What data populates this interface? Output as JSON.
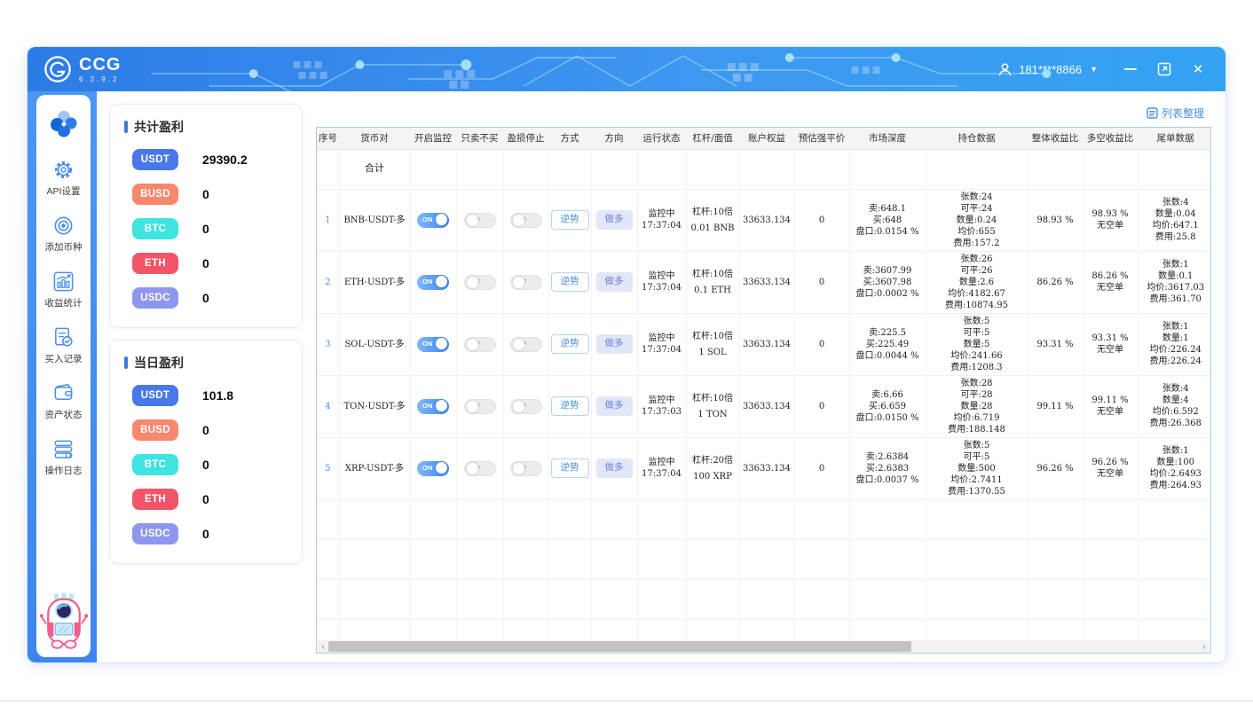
{
  "header": {
    "brand": "CCG",
    "version": "6.2.9.2",
    "user_phone": "181****8866"
  },
  "window_controls": {
    "minimize": "minimize",
    "maximize": "maximize",
    "close": "✕"
  },
  "sidebar": {
    "items": [
      {
        "icon": "gear-icon",
        "label": "API设置"
      },
      {
        "icon": "target-icon",
        "label": "添加币种"
      },
      {
        "icon": "chart-icon",
        "label": "收益统计"
      },
      {
        "icon": "receipt-icon",
        "label": "买入记录"
      },
      {
        "icon": "wallet-icon",
        "label": "资产状态"
      },
      {
        "icon": "logs-icon",
        "label": "操作日志"
      }
    ]
  },
  "coin_colors": {
    "USDT": "#4878ea",
    "BUSD": "#f8876e",
    "BTC": "#3fe3e0",
    "ETH": "#f25468",
    "USDC": "#8e97ee"
  },
  "accent_colors": {
    "title_bar": "#3a7bd5",
    "link": "#4a90e0"
  },
  "profit_cards": [
    {
      "title": "共计盈利",
      "items": [
        {
          "coin": "USDT",
          "value": "29390.2"
        },
        {
          "coin": "BUSD",
          "value": "0"
        },
        {
          "coin": "BTC",
          "value": "0"
        },
        {
          "coin": "ETH",
          "value": "0"
        },
        {
          "coin": "USDC",
          "value": "0"
        }
      ]
    },
    {
      "title": "当日盈利",
      "items": [
        {
          "coin": "USDT",
          "value": "101.8"
        },
        {
          "coin": "BUSD",
          "value": "0"
        },
        {
          "coin": "BTC",
          "value": "0"
        },
        {
          "coin": "ETH",
          "value": "0"
        },
        {
          "coin": "USDC",
          "value": "0"
        }
      ]
    }
  ],
  "table": {
    "organize_label": "列表整理",
    "toggle_on_label": "ON",
    "toggle_off_label": "OFF",
    "headers": [
      "序号",
      "货币对",
      "开启监控",
      "只卖不买",
      "盈损停止",
      "方式",
      "方向",
      "运行状态",
      "杠杆/面值",
      "账户权益",
      "预估强平价",
      "市场深度",
      "持仓数据",
      "整体收益比",
      "多空收益比",
      "尾单数据"
    ],
    "total_row_label": "合计",
    "rows": [
      {
        "index": "1",
        "pair": "BNB-USDT-多",
        "monitor_on": true,
        "sell_only_on": false,
        "stop_on": false,
        "mode": "逆势",
        "direction": "做多",
        "status": [
          "监控中",
          "17:37:04"
        ],
        "leverage": [
          "杠杆:10倍",
          "0.01 BNB"
        ],
        "equity": "33633.134",
        "liq_price": "0",
        "depth": [
          "卖:648.1",
          "买:648",
          "盘口:0.0154 %"
        ],
        "position": [
          "张数:24",
          "可平:24",
          "数量:0.24",
          "均价:655",
          "费用:157.2"
        ],
        "overall_ratio": "98.93 %",
        "ls_ratio": [
          "98.93 %",
          "无空单"
        ],
        "tail": [
          "张数:4",
          "数量:0.04",
          "均价:647.1",
          "费用:25.8"
        ]
      },
      {
        "index": "2",
        "pair": "ETH-USDT-多",
        "monitor_on": true,
        "sell_only_on": false,
        "stop_on": false,
        "mode": "逆势",
        "direction": "做多",
        "status": [
          "监控中",
          "17:37:04"
        ],
        "leverage": [
          "杠杆:10倍",
          "0.1 ETH"
        ],
        "equity": "33633.134",
        "liq_price": "0",
        "depth": [
          "卖:3607.99",
          "买:3607.98",
          "盘口:0.0002 %"
        ],
        "position": [
          "张数:26",
          "可平:26",
          "数量:2.6",
          "均价:4182.67",
          "费用:10874.95"
        ],
        "overall_ratio": "86.26 %",
        "ls_ratio": [
          "86.26 %",
          "无空单"
        ],
        "tail": [
          "张数:1",
          "数量:0.1",
          "均价:3617.03",
          "费用:361.70"
        ]
      },
      {
        "index": "3",
        "pair": "SOL-USDT-多",
        "monitor_on": true,
        "sell_only_on": false,
        "stop_on": false,
        "mode": "逆势",
        "direction": "做多",
        "status": [
          "监控中",
          "17:37:04"
        ],
        "leverage": [
          "杠杆:10倍",
          "1 SOL"
        ],
        "equity": "33633.134",
        "liq_price": "0",
        "depth": [
          "卖:225.5",
          "买:225.49",
          "盘口:0.0044 %"
        ],
        "position": [
          "张数:5",
          "可平:5",
          "数量:5",
          "均价:241.66",
          "费用:1208.3"
        ],
        "overall_ratio": "93.31 %",
        "ls_ratio": [
          "93.31 %",
          "无空单"
        ],
        "tail": [
          "张数:1",
          "数量:1",
          "均价:226.24",
          "费用:226.24"
        ]
      },
      {
        "index": "4",
        "pair": "TON-USDT-多",
        "monitor_on": true,
        "sell_only_on": false,
        "stop_on": false,
        "mode": "逆势",
        "direction": "做多",
        "status": [
          "监控中",
          "17:37:03"
        ],
        "leverage": [
          "杠杆:10倍",
          "1 TON"
        ],
        "equity": "33633.134",
        "liq_price": "0",
        "depth": [
          "卖:6.66",
          "买:6.659",
          "盘口:0.0150 %"
        ],
        "position": [
          "张数:28",
          "可平:28",
          "数量:28",
          "均价:6.719",
          "费用:188.148"
        ],
        "overall_ratio": "99.11 %",
        "ls_ratio": [
          "99.11 %",
          "无空单"
        ],
        "tail": [
          "张数:4",
          "数量:4",
          "均价:6.592",
          "费用:26.368"
        ]
      },
      {
        "index": "5",
        "pair": "XRP-USDT-多",
        "monitor_on": true,
        "sell_only_on": false,
        "stop_on": false,
        "mode": "逆势",
        "direction": "做多",
        "status": [
          "监控中",
          "17:37:04"
        ],
        "leverage": [
          "杠杆:20倍",
          "100 XRP"
        ],
        "equity": "33633.134",
        "liq_price": "0",
        "depth": [
          "卖:2.6384",
          "买:2.6383",
          "盘口:0.0037 %"
        ],
        "position": [
          "张数:5",
          "可平:5",
          "数量:500",
          "均价:2.7411",
          "费用:1370.55"
        ],
        "overall_ratio": "96.26 %",
        "ls_ratio": [
          "96.26 %",
          "无空单"
        ],
        "tail": [
          "张数:1",
          "数量:100",
          "均价:2.6493",
          "费用:264.93"
        ]
      }
    ]
  }
}
